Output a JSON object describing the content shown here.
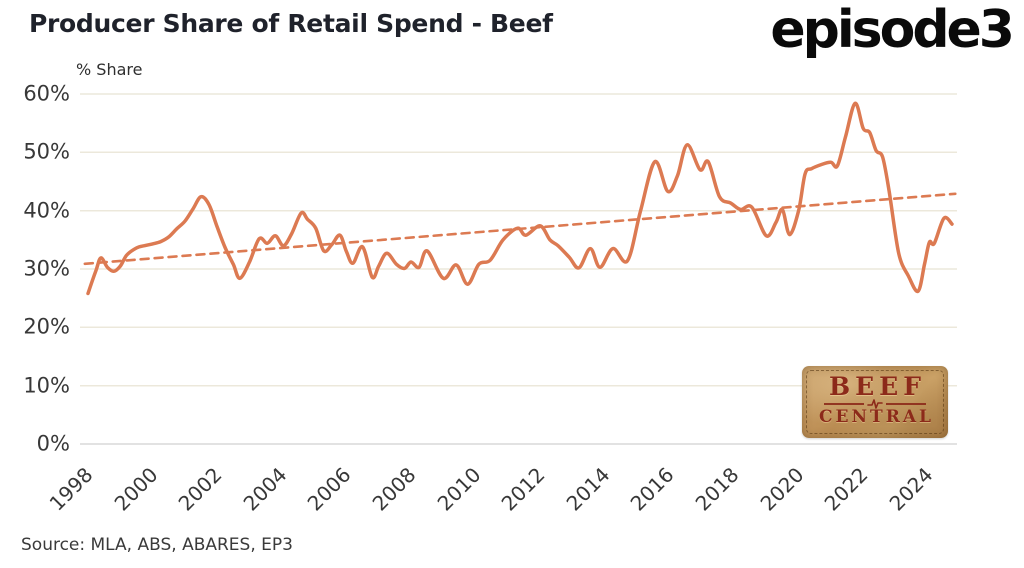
{
  "header": {
    "logo_text": "episode3"
  },
  "footer": {
    "source": "Source: MLA, ABS, ABARES, EP3"
  },
  "badge": {
    "line1": "BEEF",
    "line2": "CENTRAL"
  },
  "colors": {
    "series_line": "#DC7A52",
    "trend_line": "#DC7A52",
    "gridline": "#ECE8DB",
    "zero_axis_line": "#D9D9D9",
    "title_text": "#1F222B",
    "tick_text": "#383838",
    "logo_text": "#0A0A0A",
    "badge_background": "#C49A62",
    "badge_text": "#8C2A1A"
  },
  "chart_data": {
    "type": "line",
    "title": "Producer Share of Retail Spend - Beef",
    "ylabel": "% Share",
    "xlabel": "",
    "ylim": [
      0,
      60
    ],
    "xlim": [
      1997.9,
      2025.2
    ],
    "grid": "horizontal-only",
    "legend": "none",
    "y_ticks": [
      "0%",
      "10%",
      "20%",
      "30%",
      "40%",
      "50%",
      "60%"
    ],
    "x_ticks": [
      "1998",
      "2000",
      "2002",
      "2004",
      "2006",
      "2008",
      "2010",
      "2012",
      "2014",
      "2016",
      "2018",
      "2020",
      "2022",
      "2024"
    ],
    "series": [
      {
        "name": "Producer share of retail spend",
        "style": "solid",
        "x": [
          1998.0,
          1998.25,
          1998.4,
          1998.6,
          1998.8,
          1999.0,
          1999.2,
          1999.5,
          1999.75,
          2000.0,
          2000.25,
          2000.5,
          2000.75,
          2001.0,
          2001.25,
          2001.5,
          2001.75,
          2002.0,
          2002.25,
          2002.5,
          2002.7,
          2003.0,
          2003.3,
          2003.55,
          2003.8,
          2004.05,
          2004.3,
          2004.6,
          2004.8,
          2005.05,
          2005.3,
          2005.55,
          2005.8,
          2006.0,
          2006.2,
          2006.5,
          2006.8,
          2007.0,
          2007.25,
          2007.55,
          2007.8,
          2008.0,
          2008.25,
          2008.5,
          2009.0,
          2009.4,
          2009.75,
          2010.1,
          2010.45,
          2010.85,
          2011.3,
          2011.55,
          2012.0,
          2012.3,
          2012.55,
          2012.9,
          2013.2,
          2013.55,
          2013.85,
          2014.25,
          2014.7,
          2015.1,
          2015.55,
          2015.95,
          2016.25,
          2016.55,
          2016.95,
          2017.2,
          2017.55,
          2017.9,
          2018.2,
          2018.55,
          2019.0,
          2019.3,
          2019.5,
          2019.72,
          2020.0,
          2020.2,
          2020.4,
          2020.7,
          2021.0,
          2021.2,
          2021.45,
          2021.75,
          2022.0,
          2022.2,
          2022.4,
          2022.6,
          2022.8,
          2023.1,
          2023.4,
          2023.7,
          2023.9,
          2024.05,
          2024.2,
          2024.5,
          2024.75
        ],
        "y": [
          25.8,
          29.8,
          31.9,
          30.3,
          29.6,
          30.5,
          32.4,
          33.6,
          34.0,
          34.3,
          34.7,
          35.5,
          36.9,
          38.2,
          40.3,
          42.4,
          41.0,
          37.2,
          33.6,
          30.8,
          28.4,
          31.2,
          35.2,
          34.4,
          35.7,
          34.0,
          36.0,
          39.6,
          38.5,
          37.0,
          33.1,
          34.2,
          35.8,
          33.0,
          31.0,
          33.8,
          28.6,
          30.5,
          32.7,
          30.8,
          30.1,
          31.2,
          30.3,
          33.1,
          28.4,
          30.7,
          27.4,
          30.8,
          31.5,
          35.0,
          37.0,
          35.8,
          37.4,
          35.0,
          34.0,
          32.0,
          30.2,
          33.5,
          30.3,
          33.5,
          31.4,
          39.8,
          48.4,
          43.3,
          46.0,
          51.3,
          47.0,
          48.4,
          42.4,
          41.3,
          40.2,
          40.6,
          35.7,
          38.0,
          40.2,
          35.9,
          40.0,
          46.3,
          47.2,
          47.9,
          48.3,
          47.7,
          52.6,
          58.4,
          54.1,
          53.4,
          50.3,
          49.2,
          43.5,
          32.7,
          28.8,
          26.2,
          30.9,
          34.6,
          34.4,
          38.7,
          37.7
        ]
      },
      {
        "name": "Linear trend",
        "style": "dashed",
        "x": [
          1997.9,
          2024.85
        ],
        "y": [
          30.9,
          42.9
        ]
      }
    ]
  }
}
